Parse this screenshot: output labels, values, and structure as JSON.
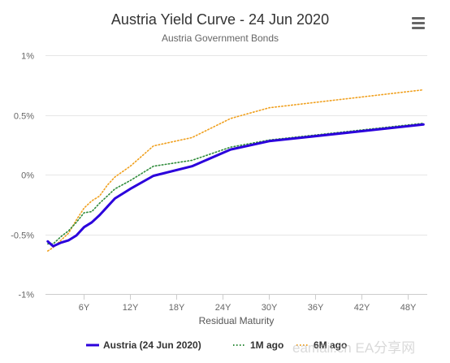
{
  "menu": {
    "icon": "hamburger-menu-icon"
  },
  "watermark": "eamail.cn   EA分享网",
  "colors": {
    "series": [
      "#2b00dc",
      "#2e8b3a",
      "#f0a01e"
    ],
    "grid": "#e6e6e6",
    "axis_label": "#666666",
    "title": "#333333"
  },
  "chart_data": {
    "type": "line",
    "title": "Austria Yield Curve - 24 Jun 2020",
    "subtitle": "Austria Government Bonds",
    "xlabel": "Residual Maturity",
    "ylabel": "",
    "xlim": [
      1,
      50.5
    ],
    "ylim": [
      -1,
      1
    ],
    "x_ticks": [
      6,
      12,
      18,
      24,
      30,
      36,
      42,
      48
    ],
    "x_tick_labels": [
      "6Y",
      "12Y",
      "18Y",
      "24Y",
      "30Y",
      "36Y",
      "42Y",
      "48Y"
    ],
    "y_ticks": [
      -1,
      -0.5,
      0,
      0.5,
      1
    ],
    "y_tick_labels": [
      "-1%",
      "-0.5%",
      "0%",
      "0.5%",
      "1%"
    ],
    "grid": "horizontal",
    "legend_position": "bottom-center",
    "series": [
      {
        "name": "Austria (24 Jun 2020)",
        "style": "solid",
        "x": [
          1.3,
          2,
          3,
          4,
          5,
          6,
          7,
          8,
          9,
          10,
          12,
          15,
          20,
          25,
          30,
          50
        ],
        "values": [
          -0.56,
          -0.6,
          -0.57,
          -0.55,
          -0.51,
          -0.44,
          -0.4,
          -0.34,
          -0.27,
          -0.2,
          -0.12,
          -0.01,
          0.07,
          0.21,
          0.28,
          0.42
        ]
      },
      {
        "name": "1M ago",
        "style": "dotted",
        "x": [
          1.3,
          2,
          3,
          4,
          5,
          6,
          7,
          8,
          9,
          10,
          12,
          15,
          20,
          25,
          30,
          50
        ],
        "values": [
          -0.58,
          -0.58,
          -0.52,
          -0.47,
          -0.4,
          -0.32,
          -0.31,
          -0.24,
          -0.18,
          -0.12,
          -0.05,
          0.07,
          0.12,
          0.23,
          0.29,
          0.43
        ]
      },
      {
        "name": "6M ago",
        "style": "dotted",
        "x": [
          1.3,
          2,
          3,
          4,
          5,
          6,
          7,
          8,
          9,
          10,
          12,
          15,
          20,
          25,
          30,
          50
        ],
        "values": [
          -0.64,
          -0.61,
          -0.55,
          -0.49,
          -0.38,
          -0.28,
          -0.22,
          -0.18,
          -0.09,
          -0.02,
          0.07,
          0.24,
          0.31,
          0.47,
          0.56,
          0.71
        ]
      }
    ]
  }
}
